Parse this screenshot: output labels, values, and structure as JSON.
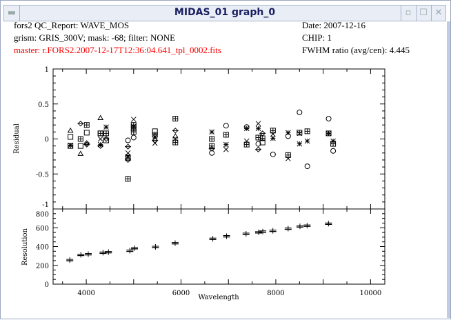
{
  "window": {
    "title": "MIDAS_01 graph_0",
    "menu_icon": "window-menu-icon",
    "minimize_icon": "minimize-icon",
    "maximize_icon": "maximize-icon",
    "close_icon": "close-icon"
  },
  "header": {
    "line1": "fors2 QC_Report: WAVE_MOS",
    "line2": "grism: GRIS_300V; mask: -68; filter: NONE",
    "line3": "master: r.FORS2.2007-12-17T12:36:04.641_tpl_0002.fits",
    "date": "Date: 2007-12-16",
    "chip": "CHIP: 1",
    "fwhm": "FWHM ratio (avg/cen): 4.445",
    "master_color": "#ff0000"
  },
  "chart_data": [
    {
      "type": "scatter",
      "title": "",
      "xlabel": "",
      "ylabel": "Residual",
      "xlim": [
        3300,
        10300
      ],
      "ylim": [
        -1,
        1
      ],
      "yticks": [
        {
          "v": 1,
          "label": "1"
        },
        {
          "v": 0.5,
          "label": "0.5"
        },
        {
          "v": 0,
          "label": "0"
        },
        {
          "v": -0.5,
          "label": "-0.5"
        },
        {
          "v": -1,
          "label": "-1"
        }
      ],
      "points": [
        {
          "x": 3666,
          "y": 0.12,
          "m": "triangle"
        },
        {
          "x": 3666,
          "y": 0.03,
          "m": "square"
        },
        {
          "x": 3666,
          "y": -0.1,
          "m": "boxplus"
        },
        {
          "x": 3666,
          "y": -0.09,
          "m": "star"
        },
        {
          "x": 3880,
          "y": 0.22,
          "m": "diamond"
        },
        {
          "x": 3880,
          "y": 0.0,
          "m": "boxplus"
        },
        {
          "x": 3880,
          "y": -0.1,
          "m": "square"
        },
        {
          "x": 3880,
          "y": -0.21,
          "m": "triangle"
        },
        {
          "x": 4010,
          "y": 0.2,
          "m": "boxplus"
        },
        {
          "x": 4010,
          "y": 0.09,
          "m": "square"
        },
        {
          "x": 4010,
          "y": -0.06,
          "m": "diamond"
        },
        {
          "x": 4010,
          "y": -0.08,
          "m": "diamond"
        },
        {
          "x": 4300,
          "y": 0.3,
          "m": "triangle"
        },
        {
          "x": 4300,
          "y": 0.08,
          "m": "boxplus"
        },
        {
          "x": 4300,
          "y": 0.08,
          "m": "square"
        },
        {
          "x": 4300,
          "y": 0.0,
          "m": "x"
        },
        {
          "x": 4300,
          "y": -0.08,
          "m": "star"
        },
        {
          "x": 4300,
          "y": -0.1,
          "m": "diamond"
        },
        {
          "x": 4420,
          "y": 0.17,
          "m": "star"
        },
        {
          "x": 4420,
          "y": 0.08,
          "m": "boxplus"
        },
        {
          "x": 4420,
          "y": 0.0,
          "m": "diamond"
        },
        {
          "x": 4420,
          "y": -0.02,
          "m": "square"
        },
        {
          "x": 4880,
          "y": -0.02,
          "m": "circle"
        },
        {
          "x": 4880,
          "y": -0.11,
          "m": "diamond"
        },
        {
          "x": 4880,
          "y": -0.2,
          "m": "x"
        },
        {
          "x": 4880,
          "y": -0.25,
          "m": "star"
        },
        {
          "x": 4880,
          "y": -0.27,
          "m": "square"
        },
        {
          "x": 4880,
          "y": -0.3,
          "m": "diamond"
        },
        {
          "x": 4880,
          "y": -0.57,
          "m": "boxplus"
        },
        {
          "x": 5000,
          "y": 0.28,
          "m": "x"
        },
        {
          "x": 5000,
          "y": 0.2,
          "m": "boxplus"
        },
        {
          "x": 5000,
          "y": 0.18,
          "m": "star"
        },
        {
          "x": 5000,
          "y": 0.15,
          "m": "boxplus"
        },
        {
          "x": 5000,
          "y": 0.1,
          "m": "boxplus"
        },
        {
          "x": 5000,
          "y": 0.02,
          "m": "circle"
        },
        {
          "x": 5450,
          "y": 0.11,
          "m": "square"
        },
        {
          "x": 5450,
          "y": 0.06,
          "m": "boxplus"
        },
        {
          "x": 5450,
          "y": 0.03,
          "m": "star"
        },
        {
          "x": 5450,
          "y": -0.02,
          "m": "diamond"
        },
        {
          "x": 5450,
          "y": -0.06,
          "m": "x"
        },
        {
          "x": 5880,
          "y": 0.29,
          "m": "boxplus"
        },
        {
          "x": 5880,
          "y": 0.12,
          "m": "diamond"
        },
        {
          "x": 5880,
          "y": 0.04,
          "m": "triangle"
        },
        {
          "x": 5880,
          "y": 0.0,
          "m": "x"
        },
        {
          "x": 5880,
          "y": -0.05,
          "m": "boxplus"
        },
        {
          "x": 6650,
          "y": 0.1,
          "m": "star"
        },
        {
          "x": 6650,
          "y": 0.0,
          "m": "boxplus"
        },
        {
          "x": 6650,
          "y": -0.1,
          "m": "boxplus"
        },
        {
          "x": 6650,
          "y": -0.14,
          "m": "diamond"
        },
        {
          "x": 6650,
          "y": -0.2,
          "m": "circle"
        },
        {
          "x": 6950,
          "y": 0.19,
          "m": "circle"
        },
        {
          "x": 6950,
          "y": 0.06,
          "m": "boxplus"
        },
        {
          "x": 6950,
          "y": -0.08,
          "m": "star"
        },
        {
          "x": 6950,
          "y": -0.15,
          "m": "x"
        },
        {
          "x": 7385,
          "y": 0.17,
          "m": "circle"
        },
        {
          "x": 7385,
          "y": 0.15,
          "m": "star"
        },
        {
          "x": 7385,
          "y": -0.03,
          "m": "x"
        },
        {
          "x": 7385,
          "y": -0.08,
          "m": "boxplus"
        },
        {
          "x": 7630,
          "y": 0.22,
          "m": "x"
        },
        {
          "x": 7630,
          "y": 0.15,
          "m": "star"
        },
        {
          "x": 7630,
          "y": 0.02,
          "m": "boxplus"
        },
        {
          "x": 7630,
          "y": -0.07,
          "m": "circle"
        },
        {
          "x": 7630,
          "y": -0.15,
          "m": "diamond"
        },
        {
          "x": 7720,
          "y": 0.08,
          "m": "diamond"
        },
        {
          "x": 7720,
          "y": 0.01,
          "m": "boxplus"
        },
        {
          "x": 7720,
          "y": -0.05,
          "m": "square"
        },
        {
          "x": 7940,
          "y": 0.12,
          "m": "boxplus"
        },
        {
          "x": 7940,
          "y": 0.07,
          "m": "x"
        },
        {
          "x": 7940,
          "y": 0.01,
          "m": "star"
        },
        {
          "x": 7940,
          "y": -0.22,
          "m": "circle"
        },
        {
          "x": 8260,
          "y": 0.09,
          "m": "star"
        },
        {
          "x": 8260,
          "y": 0.04,
          "m": "circle"
        },
        {
          "x": 8260,
          "y": -0.23,
          "m": "boxplus"
        },
        {
          "x": 8260,
          "y": -0.28,
          "m": "x"
        },
        {
          "x": 8500,
          "y": 0.38,
          "m": "circle"
        },
        {
          "x": 8500,
          "y": 0.09,
          "m": "boxplus"
        },
        {
          "x": 8500,
          "y": 0.08,
          "m": "x"
        },
        {
          "x": 8500,
          "y": -0.07,
          "m": "star"
        },
        {
          "x": 8665,
          "y": 0.11,
          "m": "boxplus"
        },
        {
          "x": 8665,
          "y": -0.03,
          "m": "star"
        },
        {
          "x": 8665,
          "y": -0.39,
          "m": "circle"
        },
        {
          "x": 9115,
          "y": 0.29,
          "m": "circle"
        },
        {
          "x": 9115,
          "y": 0.08,
          "m": "boxplus"
        },
        {
          "x": 9115,
          "y": 0.08,
          "m": "star"
        },
        {
          "x": 9210,
          "y": -0.03,
          "m": "star"
        },
        {
          "x": 9210,
          "y": -0.07,
          "m": "boxplus"
        },
        {
          "x": 9210,
          "y": -0.17,
          "m": "circle"
        }
      ]
    },
    {
      "type": "scatter",
      "title": "",
      "xlabel": "Wavelength",
      "ylabel": "Resolution",
      "xlim": [
        3300,
        10300
      ],
      "ylim": [
        0,
        800
      ],
      "xticks": [
        {
          "v": 4000,
          "label": "4000"
        },
        {
          "v": 6000,
          "label": "6000"
        },
        {
          "v": 8000,
          "label": "8000"
        },
        {
          "v": 10000,
          "label": "10000"
        }
      ],
      "yticks": [
        {
          "v": 0,
          "label": "0"
        },
        {
          "v": 200,
          "label": "200"
        },
        {
          "v": 400,
          "label": "400"
        },
        {
          "v": 600,
          "label": "600"
        },
        {
          "v": 800,
          "label": "800"
        }
      ],
      "x": [
        3652,
        3886,
        4042,
        4353,
        4468,
        4920,
        5018,
        5460,
        5875,
        6670,
        6961,
        7372,
        7636,
        7725,
        7938,
        8260,
        8509,
        8660,
        9112
      ],
      "y": [
        256,
        312,
        319,
        335,
        341,
        356,
        383,
        396,
        436,
        483,
        510,
        536,
        552,
        560,
        568,
        591,
        615,
        623,
        644
      ]
    }
  ]
}
